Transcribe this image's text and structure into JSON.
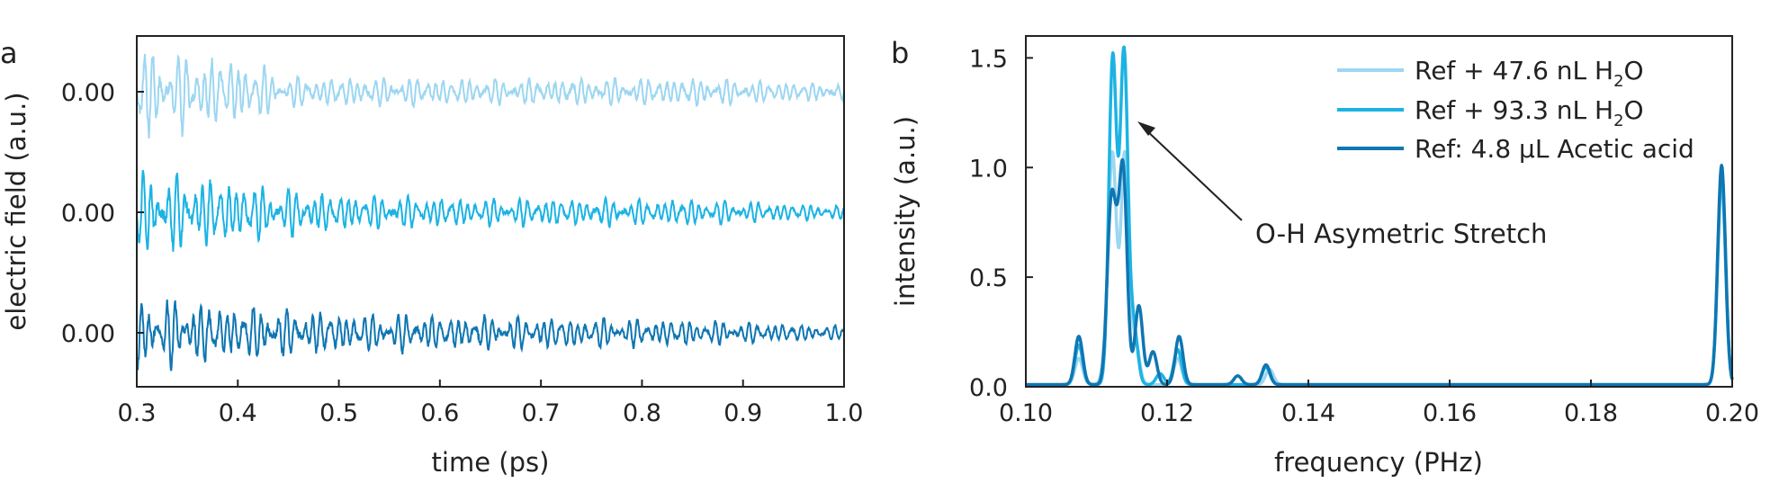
{
  "chart_data": [
    {
      "panel": "a",
      "type": "line",
      "xlabel": "time (ps)",
      "ylabel": "electric field (a.u.)",
      "xlim": [
        0.3,
        1.0
      ],
      "x_ticks": [
        "0.3",
        "0.4",
        "0.5",
        "0.6",
        "0.7",
        "0.8",
        "0.9",
        "1.0"
      ],
      "y_ticks": [
        "0.00",
        "0.00",
        "0.00"
      ],
      "grid": false,
      "series": [
        {
          "color": "#9dd6f1",
          "offset": 2,
          "amplitude_envelope": [
            [
              0.3,
              1.0
            ],
            [
              0.4,
              0.75
            ],
            [
              0.45,
              0.35
            ],
            [
              0.65,
              0.3
            ],
            [
              0.85,
              0.32
            ],
            [
              1.0,
              0.18
            ]
          ]
        },
        {
          "color": "#1cb3e3",
          "offset": 1,
          "amplitude_envelope": [
            [
              0.3,
              0.95
            ],
            [
              0.4,
              0.7
            ],
            [
              0.5,
              0.4
            ],
            [
              0.65,
              0.32
            ],
            [
              0.85,
              0.3
            ],
            [
              1.0,
              0.15
            ]
          ]
        },
        {
          "color": "#0f76b2",
          "offset": 0,
          "amplitude_envelope": [
            [
              0.3,
              0.8
            ],
            [
              0.4,
              0.65
            ],
            [
              0.5,
              0.45
            ],
            [
              0.65,
              0.38
            ],
            [
              0.85,
              0.3
            ],
            [
              1.0,
              0.15
            ]
          ]
        }
      ]
    },
    {
      "panel": "b",
      "type": "line",
      "xlabel": "frequency (PHz)",
      "ylabel": "intensity (a.u.)",
      "xlim": [
        0.1,
        0.2
      ],
      "ylim": [
        0,
        1.6
      ],
      "x_ticks": [
        "0.10",
        "0.12",
        "0.14",
        "0.16",
        "0.18",
        "0.20"
      ],
      "y_ticks": [
        "0.0",
        "0.5",
        "1.0",
        "1.5"
      ],
      "grid": false,
      "legend_position": "top-right",
      "annotation": {
        "text": "O-H Asymetric Stretch",
        "points_to": [
          0.1165,
          1.2
        ]
      },
      "series": [
        {
          "name": "Ref + 47.6 nL H2O",
          "name_parts": [
            "Ref + 47.6 nL H",
            "2",
            "O"
          ],
          "color": "#9dd6f1",
          "peaks": [
            [
              0.1075,
              0.12
            ],
            [
              0.1115,
              0.15
            ],
            [
              0.1123,
              1.0
            ],
            [
              0.114,
              1.05
            ],
            [
              0.1155,
              0.2
            ],
            [
              0.1215,
              0.12
            ],
            [
              0.1345,
              0.07
            ],
            [
              0.1985,
              0.92
            ]
          ]
        },
        {
          "name": "Ref + 93.3 nL H2O",
          "name_parts": [
            "Ref + 93.3 nL H",
            "2",
            "O"
          ],
          "color": "#1cb3e3",
          "peaks": [
            [
              0.1075,
              0.18
            ],
            [
              0.1123,
              1.49
            ],
            [
              0.1139,
              1.51
            ],
            [
              0.1153,
              0.25
            ],
            [
              0.119,
              0.05
            ],
            [
              0.1215,
              0.16
            ],
            [
              0.134,
              0.08
            ],
            [
              0.1985,
              0.96
            ]
          ]
        },
        {
          "name": "Ref: 4.8 µL Acetic acid",
          "name_parts": [
            "Ref: 4.8 µL Acetic acid",
            "",
            ""
          ],
          "color": "#0f76b2",
          "peaks": [
            [
              0.1075,
              0.22
            ],
            [
              0.112,
              0.7
            ],
            [
              0.1128,
              0.4
            ],
            [
              0.1138,
              0.93
            ],
            [
              0.116,
              0.36
            ],
            [
              0.118,
              0.15
            ],
            [
              0.1217,
              0.22
            ],
            [
              0.13,
              0.04
            ],
            [
              0.134,
              0.09
            ],
            [
              0.1985,
              1.0
            ]
          ]
        }
      ]
    }
  ],
  "panel_letters": [
    "a",
    "b"
  ]
}
